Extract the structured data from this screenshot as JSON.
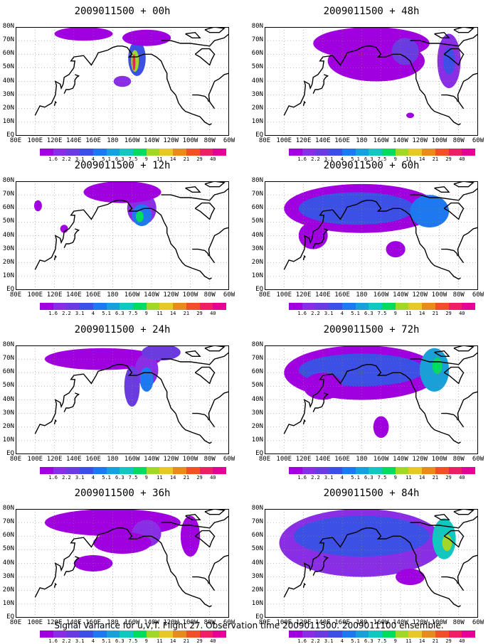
{
  "caption": "Signal Variance for u,v,T. Flight 27. Observation time 2009011500. 2009011100 ensemble.",
  "panels": [
    {
      "title": "2009011500 + 00h",
      "blobs": [
        {
          "lon": 205,
          "lat": 57,
          "rx": 9,
          "ry": 13,
          "level": 3
        },
        {
          "lon": 203,
          "lat": 55,
          "rx": 4,
          "ry": 8,
          "level": 8
        },
        {
          "lon": 202,
          "lat": 54,
          "rx": 1.5,
          "ry": 6,
          "level": 12
        },
        {
          "lon": 190,
          "lat": 40,
          "rx": 9,
          "ry": 4,
          "level": 1
        },
        {
          "lon": 215,
          "lat": 72,
          "rx": 25,
          "ry": 6,
          "level": 0
        },
        {
          "lon": 150,
          "lat": 75,
          "rx": 30,
          "ry": 5,
          "level": 0
        }
      ]
    },
    {
      "title": "2009011500 + 48h",
      "blobs": [
        {
          "lon": 190,
          "lat": 68,
          "rx": 60,
          "ry": 12,
          "level": 0
        },
        {
          "lon": 195,
          "lat": 55,
          "rx": 50,
          "ry": 15,
          "level": 0
        },
        {
          "lon": 225,
          "lat": 62,
          "rx": 14,
          "ry": 10,
          "level": 2
        },
        {
          "lon": 270,
          "lat": 55,
          "rx": 12,
          "ry": 20,
          "level": 1
        },
        {
          "lon": 270,
          "lat": 55,
          "rx": 6,
          "ry": 10,
          "level": 3
        },
        {
          "lon": 230,
          "lat": 15,
          "rx": 4,
          "ry": 2,
          "level": 0
        }
      ]
    },
    {
      "title": "2009011500 + 12h",
      "blobs": [
        {
          "lon": 210,
          "lat": 60,
          "rx": 15,
          "ry": 12,
          "level": 1
        },
        {
          "lon": 210,
          "lat": 55,
          "rx": 10,
          "ry": 8,
          "level": 4
        },
        {
          "lon": 208,
          "lat": 54,
          "rx": 4,
          "ry": 4,
          "level": 7
        },
        {
          "lon": 190,
          "lat": 72,
          "rx": 40,
          "ry": 8,
          "level": 0
        },
        {
          "lon": 103,
          "lat": 62,
          "rx": 4,
          "ry": 4,
          "level": 0
        },
        {
          "lon": 130,
          "lat": 45,
          "rx": 4,
          "ry": 3,
          "level": 0
        }
      ]
    },
    {
      "title": "2009011500 + 60h",
      "blobs": [
        {
          "lon": 180,
          "lat": 60,
          "rx": 80,
          "ry": 18,
          "level": 0
        },
        {
          "lon": 175,
          "lat": 60,
          "rx": 60,
          "ry": 12,
          "level": 3
        },
        {
          "lon": 250,
          "lat": 58,
          "rx": 20,
          "ry": 12,
          "level": 4
        },
        {
          "lon": 130,
          "lat": 40,
          "rx": 15,
          "ry": 10,
          "level": 0
        },
        {
          "lon": 215,
          "lat": 30,
          "rx": 10,
          "ry": 6,
          "level": 0
        }
      ]
    },
    {
      "title": "2009011500 + 24h",
      "blobs": [
        {
          "lon": 170,
          "lat": 70,
          "rx": 60,
          "ry": 8,
          "level": 0
        },
        {
          "lon": 215,
          "lat": 62,
          "rx": 12,
          "ry": 12,
          "level": 1
        },
        {
          "lon": 215,
          "lat": 55,
          "rx": 7,
          "ry": 9,
          "level": 4
        },
        {
          "lon": 200,
          "lat": 50,
          "rx": 8,
          "ry": 15,
          "level": 2
        },
        {
          "lon": 230,
          "lat": 75,
          "rx": 20,
          "ry": 6,
          "level": 2
        }
      ]
    },
    {
      "title": "2009011500 + 72h",
      "blobs": [
        {
          "lon": 180,
          "lat": 60,
          "rx": 80,
          "ry": 20,
          "level": 0
        },
        {
          "lon": 180,
          "lat": 62,
          "rx": 65,
          "ry": 12,
          "level": 3
        },
        {
          "lon": 255,
          "lat": 62,
          "rx": 15,
          "ry": 16,
          "level": 5
        },
        {
          "lon": 258,
          "lat": 65,
          "rx": 5,
          "ry": 6,
          "level": 7
        },
        {
          "lon": 140,
          "lat": 50,
          "rx": 20,
          "ry": 10,
          "level": 0
        },
        {
          "lon": 200,
          "lat": 20,
          "rx": 8,
          "ry": 8,
          "level": 0
        }
      ]
    },
    {
      "title": "2009011500 + 36h",
      "blobs": [
        {
          "lon": 180,
          "lat": 70,
          "rx": 70,
          "ry": 10,
          "level": 0
        },
        {
          "lon": 215,
          "lat": 62,
          "rx": 15,
          "ry": 10,
          "level": 1
        },
        {
          "lon": 190,
          "lat": 55,
          "rx": 30,
          "ry": 8,
          "level": 0
        },
        {
          "lon": 260,
          "lat": 60,
          "rx": 10,
          "ry": 15,
          "level": 0
        },
        {
          "lon": 160,
          "lat": 40,
          "rx": 20,
          "ry": 6,
          "level": 0
        }
      ]
    },
    {
      "title": "2009011500 + 84h",
      "blobs": [
        {
          "lon": 180,
          "lat": 55,
          "rx": 85,
          "ry": 25,
          "level": 1
        },
        {
          "lon": 180,
          "lat": 60,
          "rx": 70,
          "ry": 15,
          "level": 3
        },
        {
          "lon": 265,
          "lat": 58,
          "rx": 12,
          "ry": 15,
          "level": 6
        },
        {
          "lon": 268,
          "lat": 55,
          "rx": 5,
          "ry": 6,
          "level": 8
        },
        {
          "lon": 230,
          "lat": 30,
          "rx": 15,
          "ry": 6,
          "level": 0
        }
      ]
    }
  ],
  "axes": {
    "x_labels": [
      "80E",
      "100E",
      "120E",
      "140E",
      "160E",
      "180",
      "160W",
      "140W",
      "120W",
      "100W",
      "80W",
      "60W"
    ],
    "y_labels": [
      "EQ",
      "10N",
      "20N",
      "30N",
      "40N",
      "50N",
      "60N",
      "70N",
      "80N"
    ],
    "lon_min": 80,
    "lon_max": 300,
    "lat_min": 0,
    "lat_max": 80
  },
  "colorbar": {
    "labels": [
      "1.6",
      "2.2",
      "3.1",
      "4",
      "5.1",
      "6.3",
      "7.5",
      "9",
      "11",
      "14",
      "21",
      "29",
      "40"
    ],
    "colors": [
      "#a000e0",
      "#8a2ee6",
      "#6a3ce0",
      "#3c50e6",
      "#1e78f0",
      "#1aa0d8",
      "#10c8c0",
      "#00dc60",
      "#a0d728",
      "#e6c828",
      "#e68c1e",
      "#f05028",
      "#f01e64",
      "#e60096"
    ]
  }
}
